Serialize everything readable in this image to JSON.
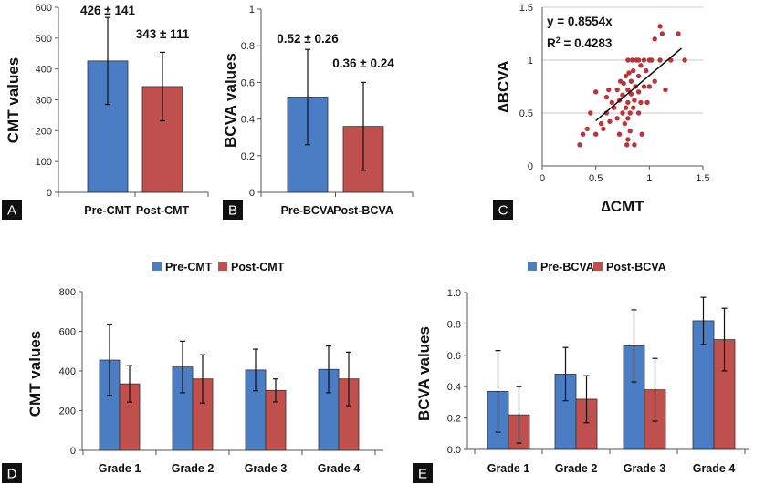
{
  "colors": {
    "pre": "#4a7dc4",
    "post": "#c0504d",
    "scatter": "#c0323a",
    "grid": "#c8c8c8",
    "axis": "#555555",
    "panel_label_bg": "#111111"
  },
  "chart_data": [
    {
      "panel": "A",
      "type": "bar",
      "categories": [
        "Pre-CMT",
        "Post-CMT"
      ],
      "values": [
        426,
        343
      ],
      "errors": [
        141,
        111
      ],
      "annotations": [
        "426 ± 141",
        "343 ± 111"
      ],
      "ylabel": "CMT values",
      "ylim": [
        0,
        600
      ],
      "yticks": [
        "0",
        "100",
        "200",
        "300",
        "400",
        "500",
        "600"
      ],
      "grid": false
    },
    {
      "panel": "B",
      "type": "bar",
      "categories": [
        "Pre-BCVA",
        "Post-BCVA"
      ],
      "values": [
        0.52,
        0.36
      ],
      "errors": [
        0.26,
        0.24
      ],
      "annotations": [
        "0.52 ± 0.26",
        "0.36 ± 0.24"
      ],
      "ylabel": "BCVA values",
      "ylim": [
        0,
        1
      ],
      "yticks": [
        "0",
        "0.2",
        "0.4",
        "0.6",
        "0.8",
        "1"
      ],
      "grid": false
    },
    {
      "panel": "C",
      "type": "scatter",
      "equation": "y = 0.8554x",
      "r2_prefix": "R",
      "r2_sup": "2",
      "r2_value": " = 0.4283",
      "xlabel": "∆CMT",
      "ylabel": "∆BCVA",
      "xlim": [
        0,
        1.5
      ],
      "ylim": [
        0,
        1.5
      ],
      "xticks": [
        "0",
        "0.5",
        "1",
        "1.5"
      ],
      "yticks": [
        "0",
        "0.5",
        "1",
        "1.5"
      ],
      "grid": true,
      "trendline": {
        "slope": 0.8554,
        "x": [
          0.5,
          1.3
        ]
      },
      "points": [
        [
          0.35,
          0.2
        ],
        [
          0.38,
          0.3
        ],
        [
          0.42,
          0.35
        ],
        [
          0.45,
          0.5
        ],
        [
          0.5,
          0.3
        ],
        [
          0.5,
          0.7
        ],
        [
          0.55,
          0.4
        ],
        [
          0.57,
          0.35
        ],
        [
          0.6,
          0.5
        ],
        [
          0.6,
          0.65
        ],
        [
          0.62,
          0.72
        ],
        [
          0.63,
          0.42
        ],
        [
          0.65,
          0.6
        ],
        [
          0.67,
          0.55
        ],
        [
          0.7,
          0.45
        ],
        [
          0.7,
          0.72
        ],
        [
          0.72,
          0.3
        ],
        [
          0.72,
          0.62
        ],
        [
          0.73,
          0.8
        ],
        [
          0.75,
          0.5
        ],
        [
          0.75,
          0.67
        ],
        [
          0.76,
          0.78
        ],
        [
          0.77,
          0.4
        ],
        [
          0.78,
          0.55
        ],
        [
          0.78,
          0.85
        ],
        [
          0.79,
          0.2
        ],
        [
          0.8,
          0.25
        ],
        [
          0.8,
          0.45
        ],
        [
          0.8,
          0.6
        ],
        [
          0.8,
          0.72
        ],
        [
          0.8,
          1.0
        ],
        [
          0.81,
          0.88
        ],
        [
          0.82,
          0.33
        ],
        [
          0.82,
          0.5
        ],
        [
          0.83,
          0.68
        ],
        [
          0.83,
          0.8
        ],
        [
          0.84,
          1.0
        ],
        [
          0.85,
          0.55
        ],
        [
          0.85,
          0.9
        ],
        [
          0.86,
          0.2
        ],
        [
          0.86,
          0.62
        ],
        [
          0.87,
          0.75
        ],
        [
          0.88,
          1.0
        ],
        [
          0.9,
          0.5
        ],
        [
          0.9,
          0.7
        ],
        [
          0.9,
          0.85
        ],
        [
          0.9,
          1.0
        ],
        [
          0.92,
          0.6
        ],
        [
          0.92,
          0.95
        ],
        [
          0.93,
          0.3
        ],
        [
          0.95,
          1.0
        ],
        [
          0.95,
          0.75
        ],
        [
          0.97,
          0.9
        ],
        [
          0.98,
          0.6
        ],
        [
          1.0,
          1.0
        ],
        [
          1.0,
          0.75
        ],
        [
          1.02,
          1.0
        ],
        [
          1.05,
          0.8
        ],
        [
          1.05,
          1.2
        ],
        [
          1.1,
          1.0
        ],
        [
          1.1,
          1.32
        ],
        [
          1.12,
          1.25
        ],
        [
          1.15,
          0.72
        ],
        [
          1.2,
          1.0
        ],
        [
          1.27,
          1.25
        ],
        [
          1.33,
          1.0
        ]
      ]
    },
    {
      "panel": "D",
      "type": "bar",
      "categories": [
        "Grade 1",
        "Grade 2",
        "Grade 3",
        "Grade 4"
      ],
      "series": [
        {
          "name": "Pre-CMT",
          "values": [
            455,
            420,
            405,
            408
          ],
          "errors": [
            178,
            130,
            105,
            118
          ]
        },
        {
          "name": "Post-CMT",
          "values": [
            335,
            360,
            302,
            360
          ],
          "errors": [
            92,
            122,
            58,
            135
          ]
        }
      ],
      "ylabel": "CMT values",
      "ylim": [
        0,
        800
      ],
      "yticks": [
        "0",
        "200",
        "400",
        "600",
        "800"
      ],
      "legend": "top-center",
      "grid": false
    },
    {
      "panel": "E",
      "type": "bar",
      "categories": [
        "Grade 1",
        "Grade 2",
        "Grade 3",
        "Grade 4"
      ],
      "series": [
        {
          "name": "Pre-BCVA",
          "values": [
            0.37,
            0.48,
            0.66,
            0.82
          ],
          "errors": [
            0.26,
            0.17,
            0.23,
            0.15
          ]
        },
        {
          "name": "Post-BCVA",
          "values": [
            0.22,
            0.32,
            0.38,
            0.7
          ],
          "errors": [
            0.18,
            0.15,
            0.2,
            0.2
          ]
        }
      ],
      "ylabel": "BCVA values",
      "ylim": [
        0,
        1
      ],
      "yticks": [
        "0.0",
        "0.2",
        "0.4",
        "0.6",
        "0.8",
        "1.0"
      ],
      "legend": "top-center",
      "grid": false
    }
  ]
}
